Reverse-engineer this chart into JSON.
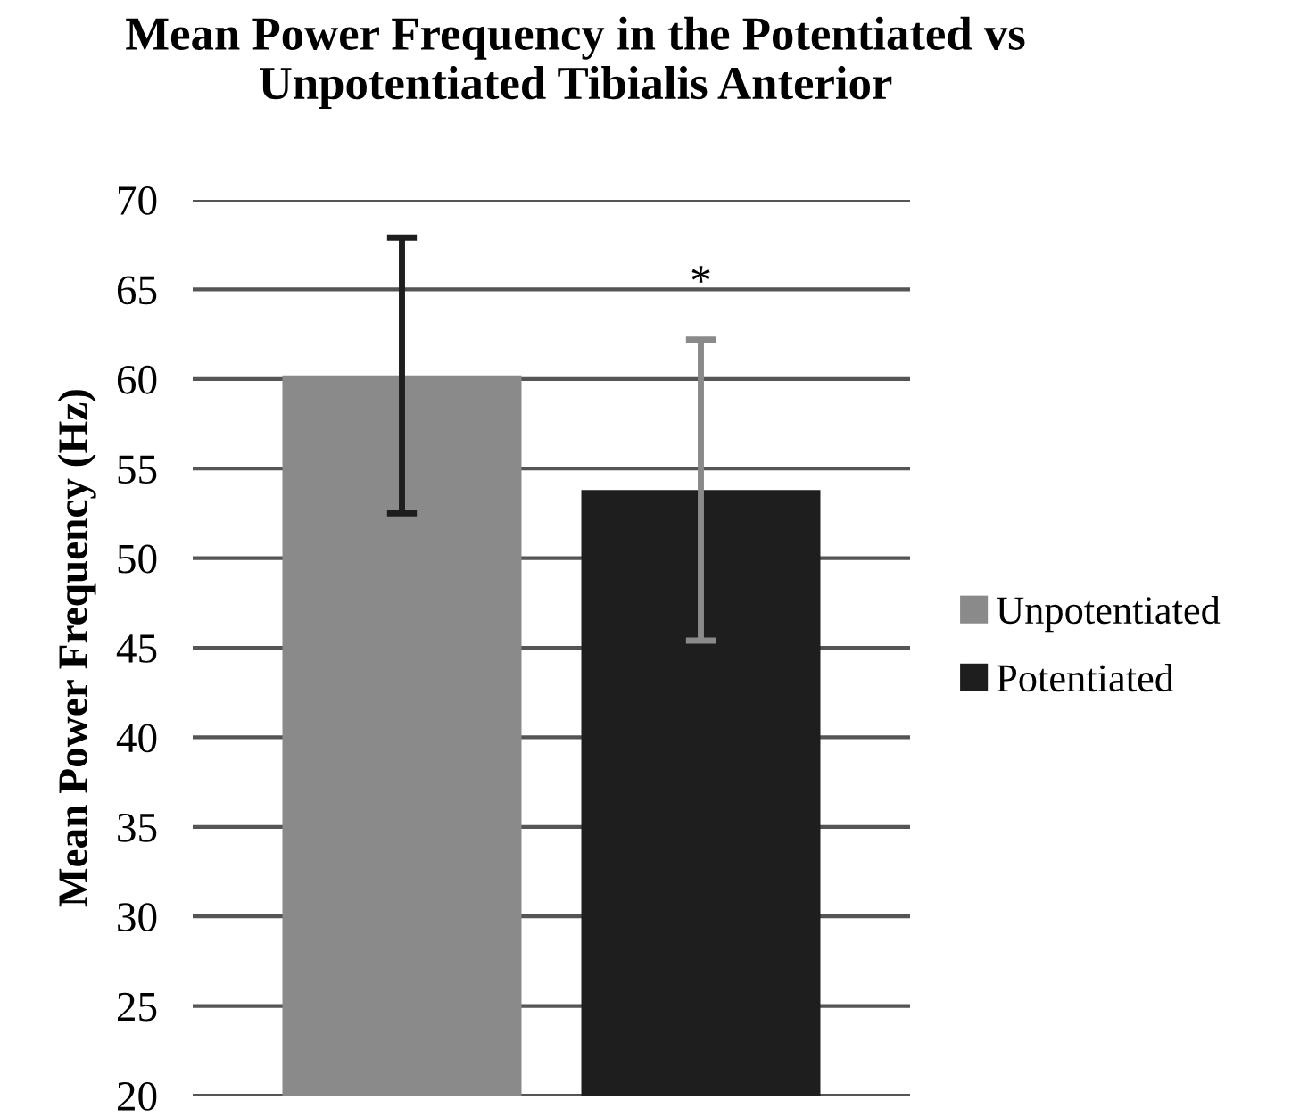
{
  "chart_data": {
    "type": "bar",
    "title": "Mean Power Frequency in the Potentiated vs\nUnpotentiated Tibialis Anterior",
    "ylabel": "Mean Power Frequency (Hz)",
    "categories": [
      null
    ],
    "series": [
      {
        "name": "Unpotentiated",
        "color": "#8a8a8a",
        "values": [
          60.2
        ],
        "errors": [
          7.7
        ]
      },
      {
        "name": "Potentiated",
        "color": "#1e1e1e",
        "values": [
          53.8
        ],
        "errors": [
          8.4
        ]
      }
    ],
    "annotations": [
      "*"
    ],
    "ylim": [
      20,
      70
    ],
    "yticks": [
      20,
      25,
      30,
      35,
      40,
      45,
      50,
      55,
      60,
      65,
      70
    ],
    "grid": "y",
    "legend": "right",
    "tick_labels": "y"
  }
}
